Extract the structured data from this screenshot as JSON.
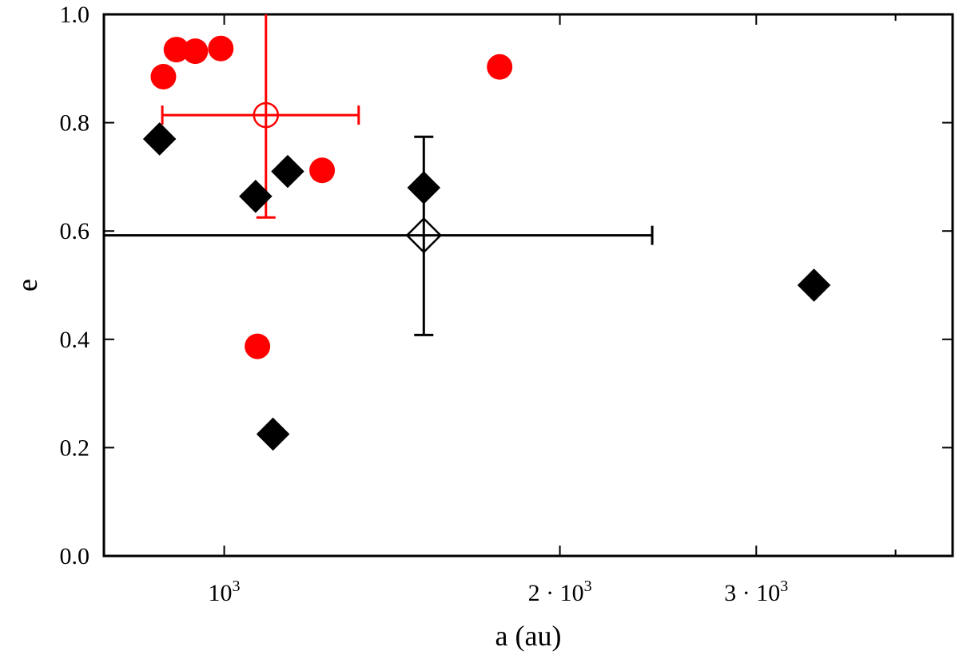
{
  "chart_data": {
    "type": "scatter",
    "title": "",
    "xlabel": "a (au)",
    "ylabel": "e",
    "xscale": "log",
    "xlim": [
      780,
      4500
    ],
    "ylim": [
      0,
      1
    ],
    "grid": false,
    "legend": "none",
    "x_ticks": [
      {
        "value": 1000,
        "label": "10",
        "sup": "3"
      },
      {
        "value": 2000,
        "label": "2 · 10",
        "sup": "3"
      },
      {
        "value": 3000,
        "label": "3 · 10",
        "sup": "3"
      }
    ],
    "x_minor_ticks": [
      4000
    ],
    "y_ticks": [
      {
        "value": 0.0,
        "label": "0.0"
      },
      {
        "value": 0.2,
        "label": "0.2"
      },
      {
        "value": 0.4,
        "label": "0.4"
      },
      {
        "value": 0.6,
        "label": "0.6"
      },
      {
        "value": 0.8,
        "label": "0.8"
      },
      {
        "value": 1.0,
        "label": "1.0"
      }
    ],
    "series": [
      {
        "marker": "circle",
        "color": "#ff0000",
        "points": [
          {
            "x": 882,
            "y": 0.885
          },
          {
            "x": 906,
            "y": 0.935
          },
          {
            "x": 942,
            "y": 0.932
          },
          {
            "x": 993,
            "y": 0.937
          },
          {
            "x": 1071,
            "y": 0.387
          },
          {
            "x": 1224,
            "y": 0.712
          },
          {
            "x": 1766,
            "y": 0.903
          }
        ]
      },
      {
        "marker": "diamond",
        "color": "#000000",
        "points": [
          {
            "x": 875,
            "y": 0.77
          },
          {
            "x": 1067,
            "y": 0.664
          },
          {
            "x": 1106,
            "y": 0.225
          },
          {
            "x": 1140,
            "y": 0.71
          },
          {
            "x": 1510,
            "y": 0.68
          },
          {
            "x": 3380,
            "y": 0.5
          }
        ]
      }
    ],
    "error_points": [
      {
        "marker": "open-circle",
        "color": "#ff0000",
        "x": 1090,
        "y": 0.814,
        "xerr": [
          880,
          1320
        ],
        "yerr": [
          0.625,
          1.0
        ]
      },
      {
        "marker": "open-diamond",
        "color": "#000000",
        "x": 1510,
        "y": 0.592,
        "xerr": [
          780,
          2420
        ],
        "yerr": [
          0.408,
          0.774
        ]
      }
    ]
  }
}
